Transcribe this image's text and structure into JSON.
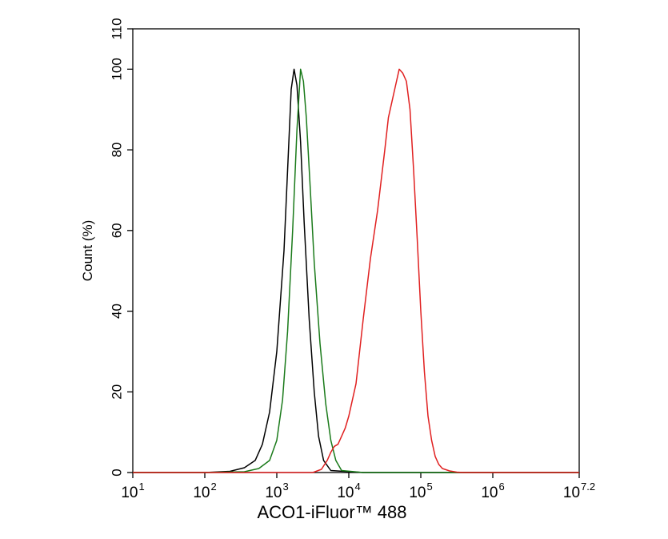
{
  "chart_data": {
    "type": "line",
    "title": "",
    "xlabel": "ACO1-iFluor™ 488",
    "ylabel": "Count  (%)",
    "x_scale": "log",
    "xlim": [
      1,
      7.2
    ],
    "ylim": [
      0,
      110
    ],
    "grid": false,
    "legend": "none",
    "x_ticks": [
      {
        "base": "10",
        "exp": "1",
        "value": 1
      },
      {
        "base": "10",
        "exp": "2",
        "value": 2
      },
      {
        "base": "10",
        "exp": "3",
        "value": 3
      },
      {
        "base": "10",
        "exp": "4",
        "value": 4
      },
      {
        "base": "10",
        "exp": "5",
        "value": 5
      },
      {
        "base": "10",
        "exp": "6",
        "value": 6
      },
      {
        "base": "10",
        "exp": "7.2",
        "value": 7.2
      }
    ],
    "y_ticks": [
      "0",
      "20",
      "40",
      "60",
      "80",
      "100",
      "110"
    ],
    "series": [
      {
        "color": "#000000",
        "x": [
          1,
          2,
          2.35,
          2.55,
          2.7,
          2.8,
          2.9,
          3.0,
          3.1,
          3.15,
          3.2,
          3.24,
          3.28,
          3.33,
          3.38,
          3.45,
          3.52,
          3.58,
          3.65,
          3.75,
          4.2,
          7.2
        ],
        "y": [
          0,
          0,
          0.3,
          1.2,
          3,
          7,
          15,
          30,
          55,
          75,
          95,
          100,
          96,
          82,
          62,
          38,
          20,
          9,
          3,
          0.5,
          0,
          0
        ]
      },
      {
        "color": "#1a7a1a",
        "x": [
          1,
          2,
          2.55,
          2.75,
          2.9,
          3.0,
          3.08,
          3.15,
          3.22,
          3.28,
          3.33,
          3.37,
          3.41,
          3.46,
          3.52,
          3.6,
          3.68,
          3.75,
          3.82,
          3.9,
          4.2,
          7.2
        ],
        "y": [
          0,
          0,
          0.2,
          1,
          3,
          8,
          18,
          35,
          60,
          85,
          100,
          97,
          88,
          72,
          52,
          32,
          17,
          8,
          3,
          0.5,
          0,
          0
        ]
      },
      {
        "color": "#e02020",
        "x": [
          1,
          3.5,
          3.62,
          3.7,
          3.75,
          3.8,
          3.85,
          3.9,
          3.95,
          4.0,
          4.1,
          4.2,
          4.3,
          4.4,
          4.5,
          4.55,
          4.6,
          4.65,
          4.7,
          4.75,
          4.8,
          4.85,
          4.9,
          4.95,
          5.0,
          5.05,
          5.1,
          5.15,
          5.2,
          5.25,
          5.3,
          5.4,
          5.5,
          5.6,
          5.8,
          6.0,
          7.2
        ],
        "y": [
          0,
          0,
          0.8,
          3,
          5,
          6.5,
          7,
          9,
          11,
          14,
          22,
          38,
          53,
          65,
          80,
          88,
          92,
          96,
          100,
          99,
          97,
          90,
          75,
          58,
          40,
          25,
          14,
          8,
          4,
          2,
          1,
          0.4,
          0.1,
          0,
          0,
          0,
          0
        ]
      }
    ]
  }
}
